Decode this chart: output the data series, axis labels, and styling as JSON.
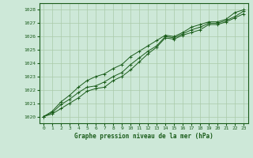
{
  "x": [
    0,
    1,
    2,
    3,
    4,
    5,
    6,
    7,
    8,
    9,
    10,
    11,
    12,
    13,
    14,
    15,
    16,
    17,
    18,
    19,
    20,
    21,
    22,
    23
  ],
  "line1": [
    1020.0,
    1020.2,
    1020.6,
    1021.0,
    1021.4,
    1021.9,
    1022.1,
    1022.2,
    1022.7,
    1023.0,
    1023.5,
    1024.1,
    1024.7,
    1025.2,
    1025.9,
    1025.8,
    1026.1,
    1026.3,
    1026.5,
    1026.9,
    1026.9,
    1027.1,
    1027.4,
    1027.7
  ],
  "line2": [
    1020.0,
    1020.3,
    1020.9,
    1021.3,
    1021.8,
    1022.2,
    1022.3,
    1022.6,
    1023.0,
    1023.3,
    1023.9,
    1024.4,
    1024.9,
    1025.3,
    1026.0,
    1025.9,
    1026.2,
    1026.5,
    1026.7,
    1027.0,
    1027.0,
    1027.2,
    1027.5,
    1027.9
  ],
  "line3": [
    1020.0,
    1020.4,
    1021.1,
    1021.6,
    1022.2,
    1022.7,
    1023.0,
    1023.2,
    1023.6,
    1023.9,
    1024.5,
    1024.9,
    1025.3,
    1025.7,
    1026.1,
    1026.0,
    1026.3,
    1026.7,
    1026.9,
    1027.1,
    1027.1,
    1027.3,
    1027.8,
    1028.0
  ],
  "line_color": "#1a5c1a",
  "marker_color": "#1a5c1a",
  "bg_color": "#cde8d8",
  "grid_color": "#aacaaa",
  "text_color": "#1a5c1a",
  "xlabel": "Graphe pression niveau de la mer (hPa)",
  "ylim": [
    1019.5,
    1028.5
  ],
  "xlim": [
    -0.5,
    23.5
  ],
  "yticks": [
    1020,
    1021,
    1022,
    1023,
    1024,
    1025,
    1026,
    1027,
    1028
  ],
  "xticks": [
    0,
    1,
    2,
    3,
    4,
    5,
    6,
    7,
    8,
    9,
    10,
    11,
    12,
    13,
    14,
    15,
    16,
    17,
    18,
    19,
    20,
    21,
    22,
    23
  ]
}
